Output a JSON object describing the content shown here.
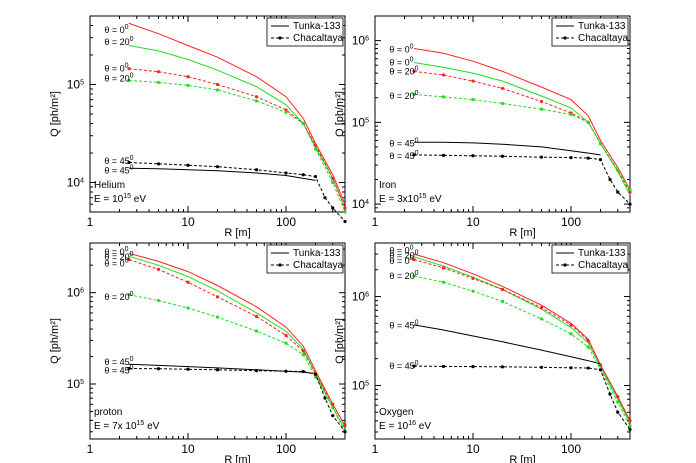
{
  "figure": {
    "x_axis_label": "R [m]",
    "y_axis_label": "Q [ph/m²]",
    "legend": {
      "tunka": "Tunka-133",
      "chacaltaya": "Chacaltaya"
    },
    "colors": {
      "theta0": "#ff2020",
      "theta20": "#20dd20",
      "theta45": "#000000"
    }
  },
  "chart_data": [
    {
      "type": "line",
      "id": "helium",
      "xscale": "log",
      "yscale": "log",
      "xlim": [
        1,
        400
      ],
      "ylim": [
        5000,
        500000
      ],
      "xlabel": "R [m]",
      "ylabel": "Q [ph/m²]",
      "x_ticks": [
        "1",
        "10",
        "100"
      ],
      "y_ticks": [
        {
          "v": 10000,
          "base": "10",
          "exp": "4"
        },
        {
          "v": 100000,
          "base": "10",
          "exp": "5"
        }
      ],
      "particle": "Helium",
      "energy": {
        "prefix": "E = 10",
        "exp": "15",
        "suffix": " eV"
      },
      "annotations": [
        {
          "base": "θ = 0",
          "exp": "0",
          "r": 1.4,
          "q": 360000
        },
        {
          "base": "θ = 20",
          "exp": "0",
          "r": 1.4,
          "q": 270000
        },
        {
          "base": "θ = 0",
          "exp": "0",
          "r": 1.4,
          "q": 145000
        },
        {
          "base": "θ = 20",
          "exp": "0",
          "r": 1.4,
          "q": 115000
        },
        {
          "base": "θ = 45",
          "exp": "0",
          "r": 1.4,
          "q": 16500
        },
        {
          "base": "θ = 45",
          "exp": "0",
          "r": 1.4,
          "q": 13300
        }
      ],
      "legend_position": "top-right",
      "series": [
        {
          "detector": "Tunka",
          "theta": 0,
          "x": [
            2.5,
            5,
            10,
            20,
            50,
            100,
            150,
            200,
            300,
            400
          ],
          "y": [
            420000,
            330000,
            250000,
            190000,
            120000,
            75000,
            45000,
            25000,
            12000,
            6000
          ]
        },
        {
          "detector": "Tunka",
          "theta": 20,
          "x": [
            2.5,
            5,
            10,
            20,
            50,
            100,
            150,
            200,
            300,
            400
          ],
          "y": [
            250000,
            220000,
            180000,
            140000,
            95000,
            62000,
            40000,
            23000,
            11000,
            5500
          ]
        },
        {
          "detector": "Tunka",
          "theta": 45,
          "x": [
            2.5,
            5,
            10,
            20,
            50,
            100,
            150,
            200
          ],
          "y": [
            14000,
            13800,
            13500,
            13200,
            12500,
            11800,
            11000,
            10500
          ]
        },
        {
          "detector": "Chacaltaya",
          "theta": 0,
          "x": [
            2.5,
            5,
            10,
            20,
            50,
            100,
            150,
            200,
            300,
            400
          ],
          "y": [
            145000,
            135000,
            120000,
            100000,
            75000,
            55000,
            40000,
            24000,
            11000,
            5500
          ]
        },
        {
          "detector": "Chacaltaya",
          "theta": 20,
          "x": [
            2.5,
            5,
            10,
            20,
            50,
            100,
            150,
            200,
            300,
            400
          ],
          "y": [
            110000,
            105000,
            98000,
            88000,
            68000,
            52000,
            40000,
            22000,
            10000,
            5000
          ]
        },
        {
          "detector": "Chacaltaya",
          "theta": 45,
          "x": [
            2.5,
            5,
            10,
            20,
            50,
            100,
            150,
            200,
            250,
            300,
            400
          ],
          "y": [
            16000,
            15500,
            15000,
            14500,
            13500,
            12500,
            12000,
            11500,
            7000,
            5500,
            4000
          ]
        }
      ]
    },
    {
      "type": "line",
      "id": "iron",
      "xscale": "log",
      "yscale": "log",
      "xlim": [
        1,
        400
      ],
      "ylim": [
        8000,
        2000000
      ],
      "xlabel": "R [m]",
      "ylabel": "Q [ph/m²]",
      "x_ticks": [
        "1",
        "10",
        "100"
      ],
      "y_ticks": [
        {
          "v": 10000,
          "base": "10",
          "exp": "4"
        },
        {
          "v": 100000,
          "base": "10",
          "exp": "5"
        },
        {
          "v": 1000000,
          "base": "10",
          "exp": "6"
        }
      ],
      "particle": "Iron",
      "energy": {
        "prefix": "E = 3x10",
        "exp": "15",
        "suffix": " eV"
      },
      "annotations": [
        {
          "base": "θ = 0",
          "exp": "0",
          "r": 1.4,
          "q": 780000
        },
        {
          "base": "θ = 0",
          "exp": "0",
          "r": 1.4,
          "q": 540000
        },
        {
          "base": "θ = 20",
          "exp": "0",
          "r": 1.4,
          "q": 420000
        },
        {
          "base": "θ = 20",
          "exp": "0",
          "r": 1.4,
          "q": 210000
        },
        {
          "base": "θ = 45",
          "exp": "0",
          "r": 1.4,
          "q": 55000
        },
        {
          "base": "θ = 45",
          "exp": "0",
          "r": 1.4,
          "q": 39000
        }
      ],
      "legend_position": "top-right",
      "series": [
        {
          "detector": "Tunka",
          "theta": 0,
          "x": [
            2.5,
            5,
            10,
            20,
            50,
            100,
            150,
            200,
            300,
            400
          ],
          "y": [
            800000,
            700000,
            560000,
            420000,
            270000,
            190000,
            120000,
            60000,
            28000,
            15000
          ]
        },
        {
          "detector": "Tunka",
          "theta": 20,
          "x": [
            2.5,
            5,
            10,
            20,
            50,
            100,
            150,
            200,
            300,
            400
          ],
          "y": [
            540000,
            470000,
            400000,
            320000,
            210000,
            150000,
            100000,
            55000,
            25000,
            13000
          ]
        },
        {
          "detector": "Tunka",
          "theta": 45,
          "x": [
            2.5,
            5,
            10,
            20,
            50,
            100,
            150,
            200
          ],
          "y": [
            57000,
            57000,
            56000,
            54000,
            50000,
            45000,
            42000,
            40000
          ]
        },
        {
          "detector": "Chacaltaya",
          "theta": 0,
          "x": [
            2.5,
            5,
            10,
            20,
            50,
            100,
            150,
            200,
            300,
            400
          ],
          "y": [
            420000,
            380000,
            320000,
            260000,
            180000,
            130000,
            100000,
            55000,
            26000,
            14000
          ]
        },
        {
          "detector": "Chacaltaya",
          "theta": 20,
          "x": [
            2.5,
            5,
            10,
            20,
            50,
            100,
            150,
            200,
            300,
            400
          ],
          "y": [
            220000,
            205000,
            190000,
            170000,
            145000,
            125000,
            100000,
            55000,
            26000,
            15000
          ]
        },
        {
          "detector": "Chacaltaya",
          "theta": 45,
          "x": [
            2.5,
            5,
            10,
            20,
            50,
            100,
            150,
            200,
            250,
            300,
            400
          ],
          "y": [
            40000,
            39500,
            39000,
            38500,
            37500,
            37000,
            36500,
            35000,
            20000,
            14000,
            10000
          ]
        }
      ]
    },
    {
      "type": "line",
      "id": "proton",
      "xscale": "log",
      "yscale": "log",
      "xlim": [
        1,
        400
      ],
      "ylim": [
        25000,
        3500000
      ],
      "xlabel": "R [m]",
      "ylabel": "Q [ph/m²]",
      "x_ticks": [
        "1",
        "10",
        "100"
      ],
      "y_ticks": [
        {
          "v": 100000,
          "base": "10",
          "exp": "5"
        },
        {
          "v": 1000000,
          "base": "10",
          "exp": "6"
        }
      ],
      "particle": "proton",
      "energy": {
        "prefix": "E = 7x 10",
        "exp": "15",
        "suffix": " eV"
      },
      "annotations": [
        {
          "base": "θ = 0",
          "exp": "0",
          "r": 1.4,
          "q": 2800000
        },
        {
          "base": "θ = 20",
          "exp": "0",
          "r": 1.4,
          "q": 2450000
        },
        {
          "base": "θ = 0",
          "exp": "0",
          "r": 1.4,
          "q": 2100000
        },
        {
          "base": "θ = 20",
          "exp": "0",
          "r": 1.4,
          "q": 900000
        },
        {
          "base": "θ = 45",
          "exp": "0",
          "r": 1.4,
          "q": 175000
        },
        {
          "base": "θ = 45",
          "exp": "0",
          "r": 1.4,
          "q": 140000
        }
      ],
      "legend_position": "top-right",
      "series": [
        {
          "detector": "Tunka",
          "theta": 0,
          "x": [
            2.5,
            5,
            10,
            20,
            50,
            100,
            150,
            200,
            300,
            400
          ],
          "y": [
            2700000,
            2200000,
            1700000,
            1200000,
            700000,
            420000,
            260000,
            140000,
            60000,
            35000
          ]
        },
        {
          "detector": "Tunka",
          "theta": 20,
          "x": [
            2.5,
            5,
            10,
            20,
            50,
            100,
            150,
            200,
            300,
            400
          ],
          "y": [
            2500000,
            2000000,
            1500000,
            1050000,
            600000,
            380000,
            240000,
            130000,
            55000,
            32000
          ]
        },
        {
          "detector": "Tunka",
          "theta": 45,
          "x": [
            2.5,
            5,
            10,
            20,
            50,
            100,
            150,
            200
          ],
          "y": [
            165000,
            160000,
            155000,
            150000,
            143000,
            138000,
            135000,
            130000
          ]
        },
        {
          "detector": "Chacaltaya",
          "theta": 0,
          "x": [
            2.5,
            5,
            10,
            20,
            50,
            100,
            150,
            200,
            300,
            400
          ],
          "y": [
            2300000,
            1800000,
            1300000,
            900000,
            550000,
            340000,
            230000,
            130000,
            60000,
            35000
          ]
        },
        {
          "detector": "Chacaltaya",
          "theta": 20,
          "x": [
            2.5,
            5,
            10,
            20,
            50,
            100,
            150,
            200,
            300,
            400
          ],
          "y": [
            950000,
            820000,
            680000,
            540000,
            380000,
            280000,
            210000,
            120000,
            55000,
            30000
          ]
        },
        {
          "detector": "Chacaltaya",
          "theta": 45,
          "x": [
            2.5,
            5,
            10,
            20,
            50,
            100,
            150,
            200,
            250,
            300,
            400
          ],
          "y": [
            148000,
            147000,
            145000,
            143000,
            140000,
            138000,
            137000,
            128000,
            70000,
            45000,
            30000
          ]
        }
      ]
    },
    {
      "type": "line",
      "id": "oxygen",
      "xscale": "log",
      "yscale": "log",
      "xlim": [
        1,
        400
      ],
      "ylim": [
        25000,
        4000000
      ],
      "xlabel": "R [m]",
      "ylabel": "Q [ph/m²]",
      "x_ticks": [
        "1",
        "10",
        "100"
      ],
      "y_ticks": [
        {
          "v": 100000,
          "base": "10",
          "exp": "5"
        },
        {
          "v": 1000000,
          "base": "10",
          "exp": "6"
        }
      ],
      "particle": "Oxygen",
      "energy": {
        "prefix": "E = 10",
        "exp": "16",
        "suffix": " eV"
      },
      "annotations": [
        {
          "base": "θ = 0",
          "exp": "0",
          "r": 1.4,
          "q": 3300000
        },
        {
          "base": "θ = 20",
          "exp": "0",
          "r": 1.4,
          "q": 2900000
        },
        {
          "base": "θ = 0",
          "exp": "0",
          "r": 1.4,
          "q": 2500000
        },
        {
          "base": "θ = 20",
          "exp": "0",
          "r": 1.4,
          "q": 1700000
        },
        {
          "base": "θ = 45",
          "exp": "0",
          "r": 1.4,
          "q": 470000
        },
        {
          "base": "θ = 45",
          "exp": "0",
          "r": 1.4,
          "q": 165000
        }
      ],
      "legend_position": "top-right",
      "series": [
        {
          "detector": "Tunka",
          "theta": 0,
          "x": [
            2.5,
            5,
            10,
            20,
            50,
            100,
            150,
            200,
            300,
            400
          ],
          "y": [
            3000000,
            2400000,
            1800000,
            1300000,
            800000,
            500000,
            330000,
            170000,
            75000,
            40000
          ]
        },
        {
          "detector": "Tunka",
          "theta": 20,
          "x": [
            2.5,
            5,
            10,
            20,
            50,
            100,
            150,
            200,
            300,
            400
          ],
          "y": [
            2800000,
            2200000,
            1650000,
            1200000,
            720000,
            450000,
            300000,
            160000,
            70000,
            38000
          ]
        },
        {
          "detector": "Tunka",
          "theta": 45,
          "x": [
            2.5,
            5,
            10,
            20,
            50,
            100,
            150,
            200
          ],
          "y": [
            480000,
            420000,
            360000,
            310000,
            250000,
            210000,
            190000,
            175000
          ]
        },
        {
          "detector": "Chacaltaya",
          "theta": 0,
          "x": [
            2.5,
            5,
            10,
            20,
            50,
            100,
            150,
            200,
            300,
            400
          ],
          "y": [
            2600000,
            2100000,
            1600000,
            1200000,
            750000,
            480000,
            320000,
            170000,
            75000,
            40000
          ]
        },
        {
          "detector": "Chacaltaya",
          "theta": 20,
          "x": [
            2.5,
            5,
            10,
            20,
            50,
            100,
            150,
            200,
            300,
            400
          ],
          "y": [
            1700000,
            1450000,
            1150000,
            880000,
            560000,
            380000,
            270000,
            150000,
            65000,
            35000
          ]
        },
        {
          "detector": "Chacaltaya",
          "theta": 45,
          "x": [
            2.5,
            5,
            10,
            20,
            50,
            100,
            150,
            200,
            250,
            300,
            400
          ],
          "y": [
            165000,
            164000,
            163000,
            162000,
            160000,
            158000,
            157000,
            150000,
            80000,
            50000,
            32000
          ]
        }
      ]
    }
  ]
}
